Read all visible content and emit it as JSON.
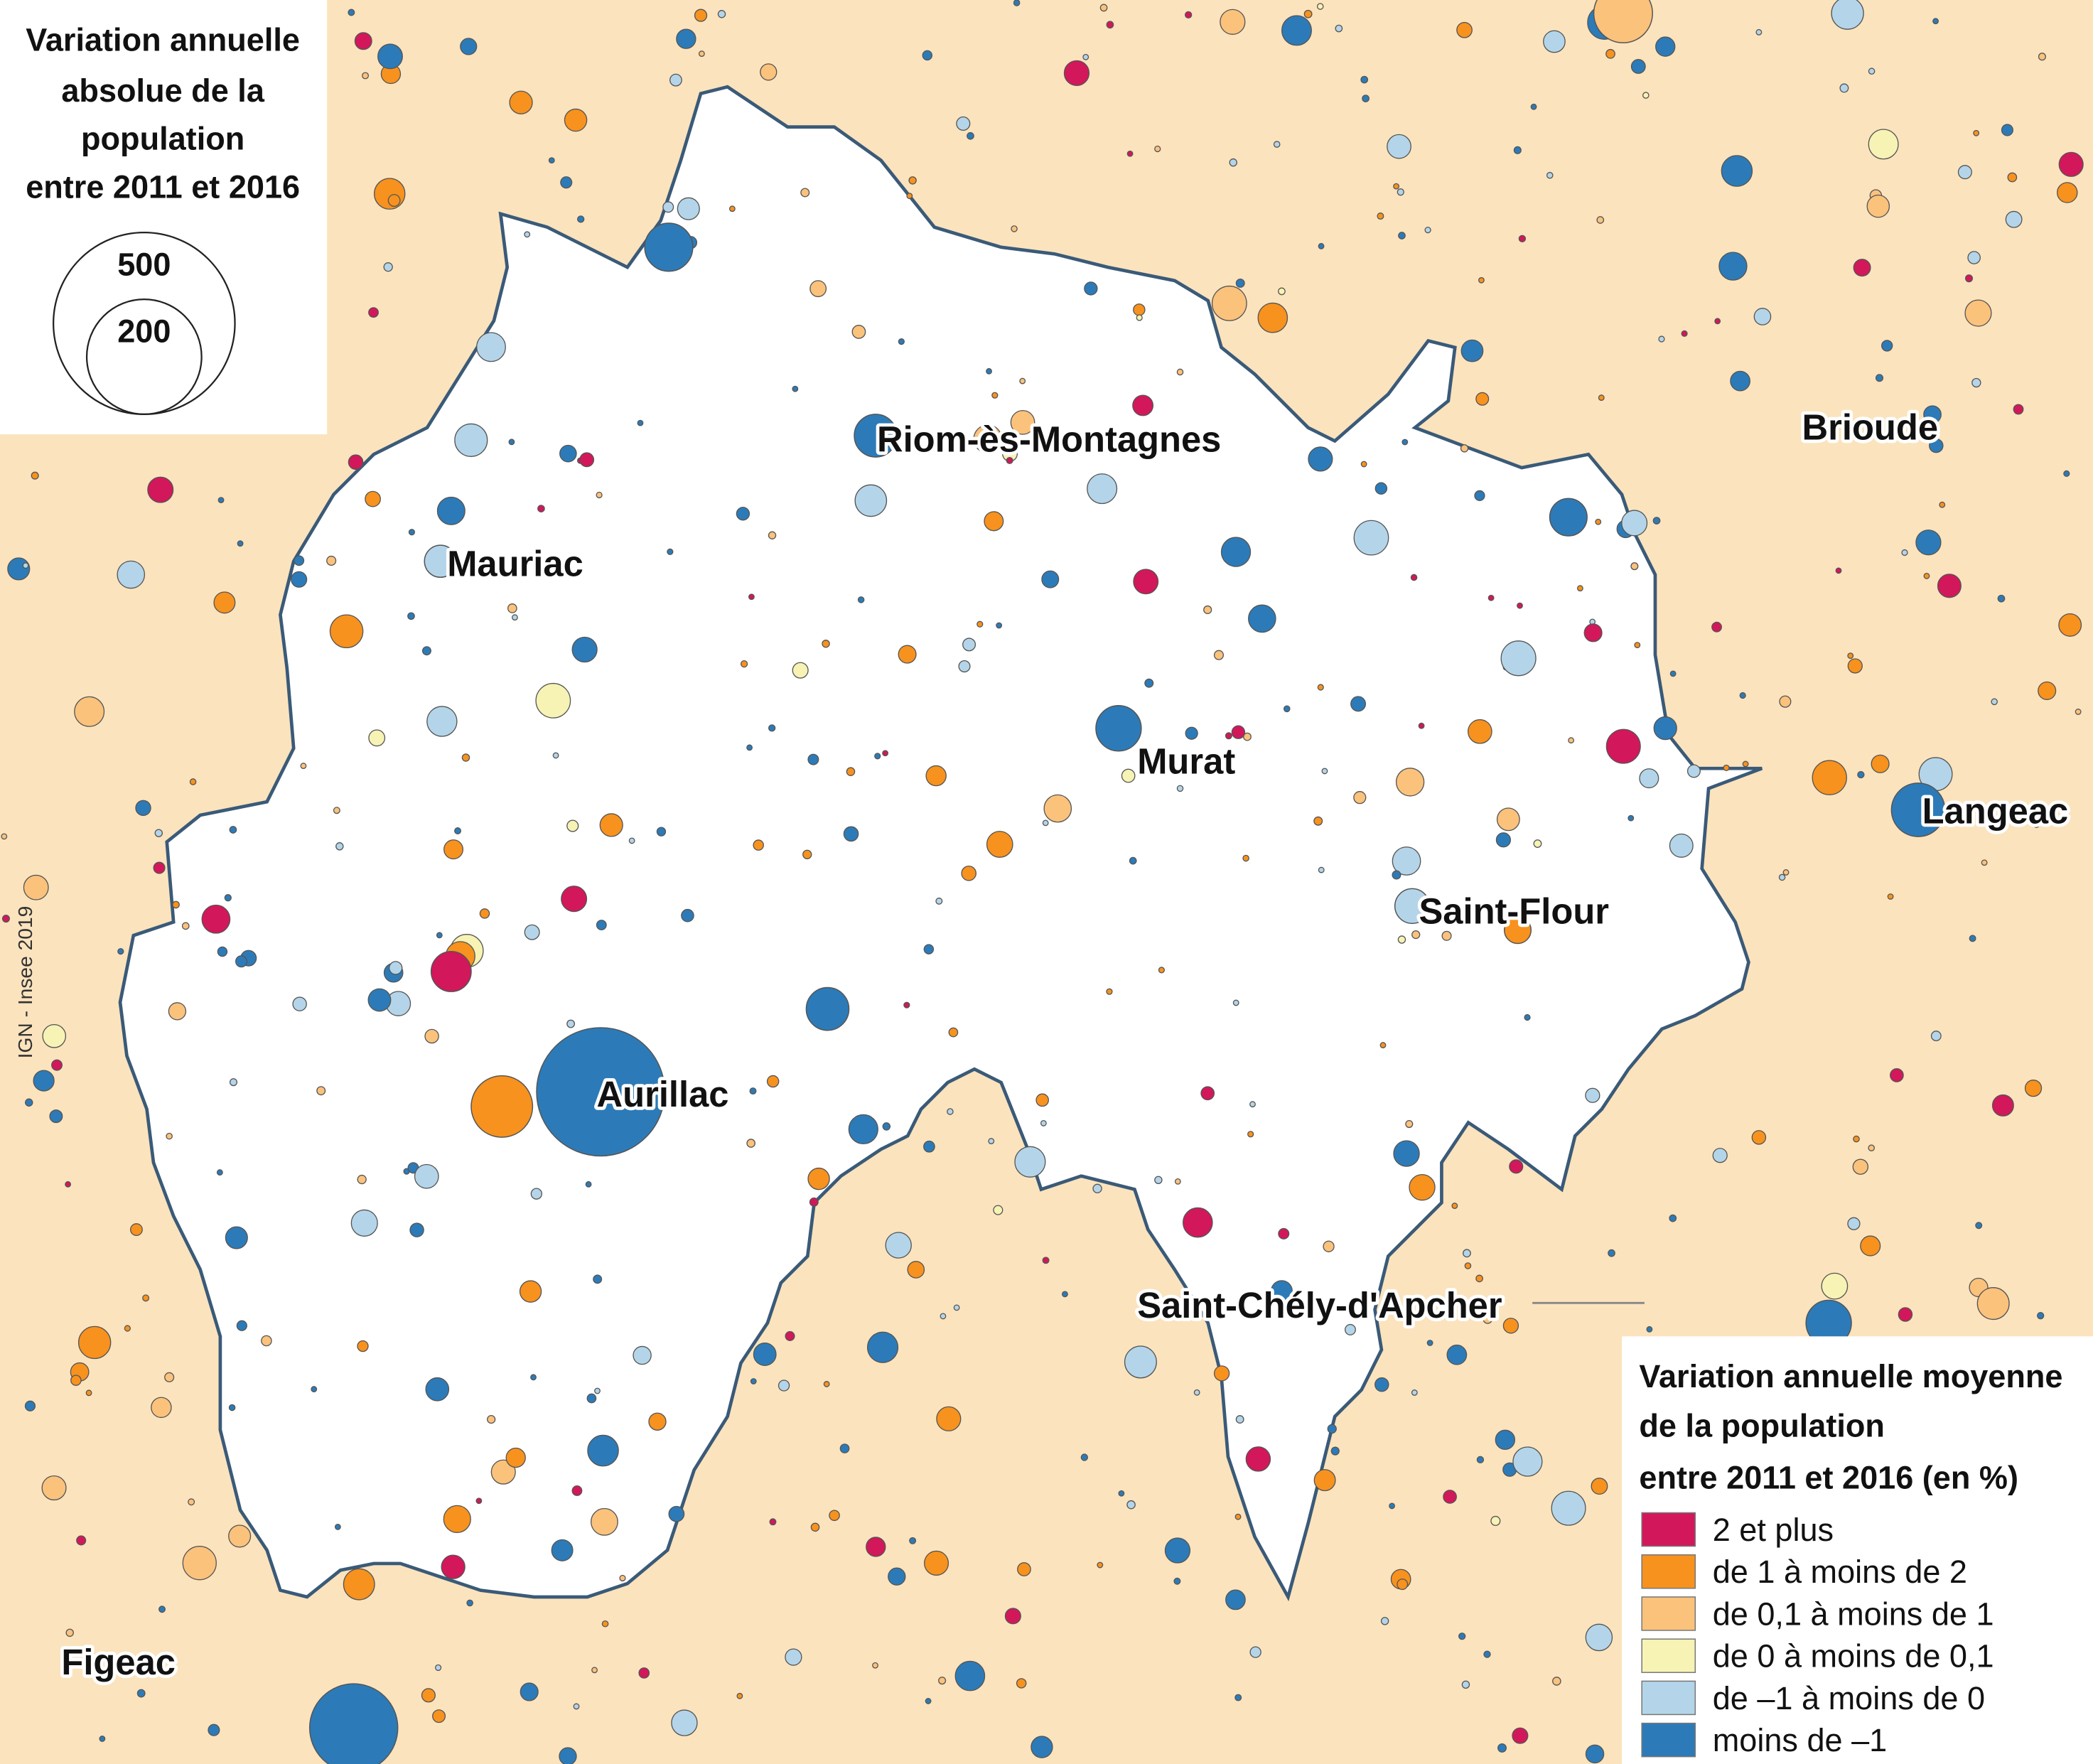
{
  "size_legend": {
    "title": [
      "Variation annuelle",
      "absolue de la",
      "population",
      "entre 2011 et 2016"
    ],
    "values": [
      500,
      200
    ]
  },
  "color_legend": {
    "title": [
      "Variation annuelle moyenne",
      "de la population",
      "entre 2011 et 2016 (en %)"
    ],
    "classes": [
      {
        "label": "2 et plus",
        "color": "#d3175b"
      },
      {
        "label": "de 1 à moins de 2",
        "color": "#f7921e"
      },
      {
        "label": "de 0,1 à moins de 1",
        "color": "#fbc27c"
      },
      {
        "label": "de 0 à moins de 0,1",
        "color": "#f6f3b4"
      },
      {
        "label": "de –1 à moins de 0",
        "color": "#b4d5e9"
      },
      {
        "label": "moins de –1",
        "color": "#2c7bb8"
      }
    ]
  },
  "places": [
    "Riom-ès-Montagnes",
    "Mauriac",
    "Murat",
    "Saint-Flour",
    "Aurillac",
    "Saint-Chély-d'Apcher",
    "Brioude",
    "Langeac",
    "Figeac"
  ],
  "credit": "IGN - Insee 2019"
}
